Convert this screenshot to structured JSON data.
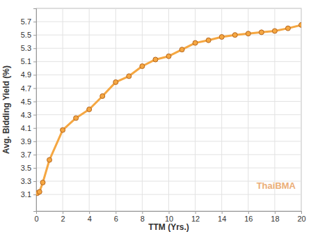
{
  "chart_data": {
    "type": "line",
    "x_label": "TTM (Yrs.)",
    "y_label": "Avg. Bidding Yield (%)",
    "annotations": [
      "ThaiBMA"
    ],
    "x": [
      0.08,
      0.25,
      0.5,
      1,
      2,
      3,
      4,
      5,
      6,
      7,
      8,
      9,
      10,
      11,
      12,
      13,
      14,
      15,
      16,
      17,
      18,
      19,
      20
    ],
    "values": [
      3.12,
      3.14,
      3.28,
      3.62,
      4.07,
      4.25,
      4.38,
      4.58,
      4.79,
      4.88,
      5.03,
      5.13,
      5.18,
      5.28,
      5.38,
      5.42,
      5.47,
      5.5,
      5.52,
      5.54,
      5.56,
      5.6,
      5.65
    ],
    "color": "#f5a742",
    "marker": "circle",
    "xlim": [
      0,
      20
    ],
    "xticks": [
      0,
      2,
      4,
      6,
      8,
      10,
      12,
      14,
      16,
      18,
      20
    ],
    "ylim": [
      2.85,
      5.9
    ],
    "yticks": [
      3.1,
      3.3,
      3.5,
      3.7,
      3.9,
      4.1,
      4.3,
      4.5,
      4.7,
      4.9,
      5.1,
      5.3,
      5.5,
      5.7
    ],
    "grid": true
  }
}
